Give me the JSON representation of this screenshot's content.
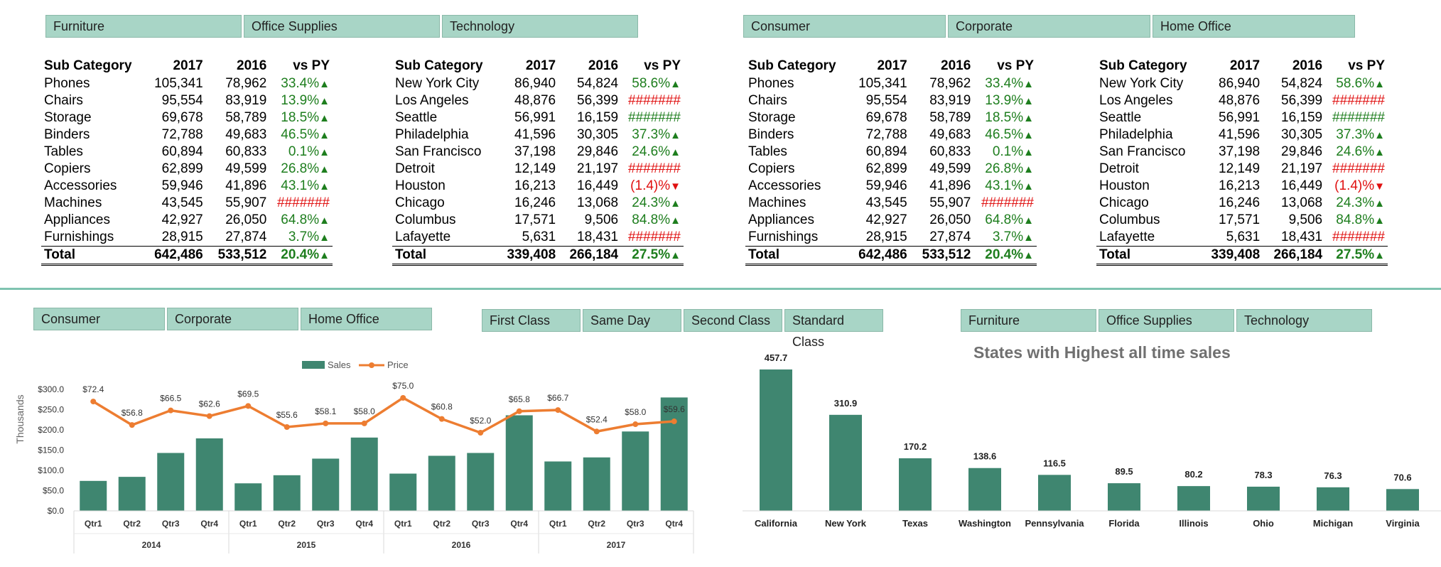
{
  "colors": {
    "slicer_bg": "#a8d5c6",
    "bar": "#3f8670",
    "line": "#ed7d31",
    "positive": "#1e7e1e",
    "negative": "#e01010",
    "divider": "#7fc3b0"
  },
  "slicers": {
    "top_left": [
      "Furniture",
      "Office Supplies",
      "Technology"
    ],
    "top_right": [
      "Consumer",
      "Corporate",
      "Home Office"
    ],
    "bottom_left": [
      "Consumer",
      "Corporate",
      "Home Office"
    ],
    "bottom_mid": [
      "First Class",
      "Same Day",
      "Second Class",
      "Standard Class"
    ],
    "bottom_right": [
      "Furniture",
      "Office Supplies",
      "Technology"
    ]
  },
  "tables": [
    {
      "headers": [
        "Sub Category",
        "2017",
        "2016",
        "vs PY"
      ],
      "rows": [
        [
          "Phones",
          "105,341",
          "78,962",
          "33.4%",
          "up"
        ],
        [
          "Chairs",
          "95,554",
          "83,919",
          "13.9%",
          "up"
        ],
        [
          "Storage",
          "69,678",
          "58,789",
          "18.5%",
          "up"
        ],
        [
          "Binders",
          "72,788",
          "49,683",
          "46.5%",
          "up"
        ],
        [
          "Tables",
          "60,894",
          "60,833",
          "0.1%",
          "up"
        ],
        [
          "Copiers",
          "62,899",
          "49,599",
          "26.8%",
          "up"
        ],
        [
          "Accessories",
          "59,946",
          "41,896",
          "43.1%",
          "up"
        ],
        [
          "Machines",
          "43,545",
          "55,907",
          "#######",
          "neg"
        ],
        [
          "Appliances",
          "42,927",
          "26,050",
          "64.8%",
          "up"
        ],
        [
          "Furnishings",
          "28,915",
          "27,874",
          "3.7%",
          "up"
        ]
      ],
      "total": [
        "Total",
        "642,486",
        "533,512",
        "20.4%",
        "up"
      ]
    },
    {
      "headers": [
        "Sub Category",
        "2017",
        "2016",
        "vs PY"
      ],
      "rows": [
        [
          "New York City",
          "86,940",
          "54,824",
          "58.6%",
          "up"
        ],
        [
          "Los Angeles",
          "48,876",
          "56,399",
          "#######",
          "neg"
        ],
        [
          "Seattle",
          "56,991",
          "16,159",
          "#######",
          "pos"
        ],
        [
          "Philadelphia",
          "41,596",
          "30,305",
          "37.3%",
          "up"
        ],
        [
          "San Francisco",
          "37,198",
          "29,846",
          "24.6%",
          "up"
        ],
        [
          "Detroit",
          "12,149",
          "21,197",
          "#######",
          "neg"
        ],
        [
          "Houston",
          "16,213",
          "16,449",
          "(1.4)%",
          "down"
        ],
        [
          "Chicago",
          "16,246",
          "13,068",
          "24.3%",
          "up"
        ],
        [
          "Columbus",
          "17,571",
          "9,506",
          "84.8%",
          "up"
        ],
        [
          "Lafayette",
          "5,631",
          "18,431",
          "#######",
          "neg"
        ]
      ],
      "total": [
        "Total",
        "339,408",
        "266,184",
        "27.5%",
        "up"
      ]
    },
    {
      "headers": [
        "Sub Category",
        "2017",
        "2016",
        "vs PY"
      ],
      "rows": [
        [
          "Phones",
          "105,341",
          "78,962",
          "33.4%",
          "up"
        ],
        [
          "Chairs",
          "95,554",
          "83,919",
          "13.9%",
          "up"
        ],
        [
          "Storage",
          "69,678",
          "58,789",
          "18.5%",
          "up"
        ],
        [
          "Binders",
          "72,788",
          "49,683",
          "46.5%",
          "up"
        ],
        [
          "Tables",
          "60,894",
          "60,833",
          "0.1%",
          "up"
        ],
        [
          "Copiers",
          "62,899",
          "49,599",
          "26.8%",
          "up"
        ],
        [
          "Accessories",
          "59,946",
          "41,896",
          "43.1%",
          "up"
        ],
        [
          "Machines",
          "43,545",
          "55,907",
          "#######",
          "neg"
        ],
        [
          "Appliances",
          "42,927",
          "26,050",
          "64.8%",
          "up"
        ],
        [
          "Furnishings",
          "28,915",
          "27,874",
          "3.7%",
          "up"
        ]
      ],
      "total": [
        "Total",
        "642,486",
        "533,512",
        "20.4%",
        "up"
      ]
    },
    {
      "headers": [
        "Sub Category",
        "2017",
        "2016",
        "vs PY"
      ],
      "rows": [
        [
          "New York City",
          "86,940",
          "54,824",
          "58.6%",
          "up"
        ],
        [
          "Los Angeles",
          "48,876",
          "56,399",
          "#######",
          "neg"
        ],
        [
          "Seattle",
          "56,991",
          "16,159",
          "#######",
          "pos"
        ],
        [
          "Philadelphia",
          "41,596",
          "30,305",
          "37.3%",
          "up"
        ],
        [
          "San Francisco",
          "37,198",
          "29,846",
          "24.6%",
          "up"
        ],
        [
          "Detroit",
          "12,149",
          "21,197",
          "#######",
          "neg"
        ],
        [
          "Houston",
          "16,213",
          "16,449",
          "(1.4)%",
          "down"
        ],
        [
          "Chicago",
          "16,246",
          "13,068",
          "24.3%",
          "up"
        ],
        [
          "Columbus",
          "17,571",
          "9,506",
          "84.8%",
          "up"
        ],
        [
          "Lafayette",
          "5,631",
          "18,431",
          "#######",
          "neg"
        ]
      ],
      "total": [
        "Total",
        "339,408",
        "266,184",
        "27.5%",
        "up"
      ]
    }
  ],
  "chart_data": [
    {
      "type": "bar",
      "title": "",
      "ylabel": "Thousands",
      "ylim": [
        0,
        300
      ],
      "yticks": [
        "$0.0",
        "$50.0",
        "$100.0",
        "$150.0",
        "$200.0",
        "$250.0",
        "$300.0"
      ],
      "legend": [
        "Sales",
        "Price"
      ],
      "legend_position": "top",
      "groups": [
        "2014",
        "2015",
        "2016",
        "2017"
      ],
      "categories": [
        "Qtr1",
        "Qtr2",
        "Qtr3",
        "Qtr4",
        "Qtr1",
        "Qtr2",
        "Qtr3",
        "Qtr4",
        "Qtr1",
        "Qtr2",
        "Qtr3",
        "Qtr4",
        "Qtr1",
        "Qtr2",
        "Qtr3",
        "Qtr4"
      ],
      "series": [
        {
          "name": "Sales",
          "type": "bar",
          "values": [
            74,
            84,
            143,
            179,
            68,
            88,
            129,
            181,
            92,
            136,
            143,
            236,
            122,
            132,
            196,
            280
          ]
        },
        {
          "name": "Price",
          "type": "line",
          "values": [
            72.4,
            56.8,
            66.5,
            62.6,
            69.5,
            55.6,
            58.1,
            58.0,
            75.0,
            60.8,
            52.0,
            65.8,
            66.7,
            52.4,
            58.0,
            59.6
          ],
          "plotted": [
            270,
            212,
            248,
            234,
            259,
            207,
            216,
            216,
            279,
            227,
            193,
            246,
            249,
            196,
            214,
            221
          ],
          "labels": [
            "$72.4",
            "$56.8",
            "$66.5",
            "$62.6",
            "$69.5",
            "$55.6",
            "$58.1",
            "$58.0",
            "$75.0",
            "$60.8",
            "$52.0",
            "$65.8",
            "$66.7",
            "$52.4",
            "$58.0",
            "$59.6"
          ]
        }
      ]
    },
    {
      "type": "bar",
      "title": "States with Highest all time sales",
      "categories": [
        "California",
        "New York",
        "Texas",
        "Washington",
        "Pennsylvania",
        "Florida",
        "Illinois",
        "Ohio",
        "Michigan",
        "Virginia"
      ],
      "values": [
        457.7,
        310.9,
        170.2,
        138.6,
        116.5,
        89.5,
        80.2,
        78.3,
        76.3,
        70.6
      ],
      "labels": [
        "457.7",
        "310.9",
        "170.2",
        "138.6",
        "116.5",
        "89.5",
        "80.2",
        "78.3",
        "76.3",
        "70.6"
      ],
      "ylim": [
        0,
        460
      ]
    }
  ]
}
